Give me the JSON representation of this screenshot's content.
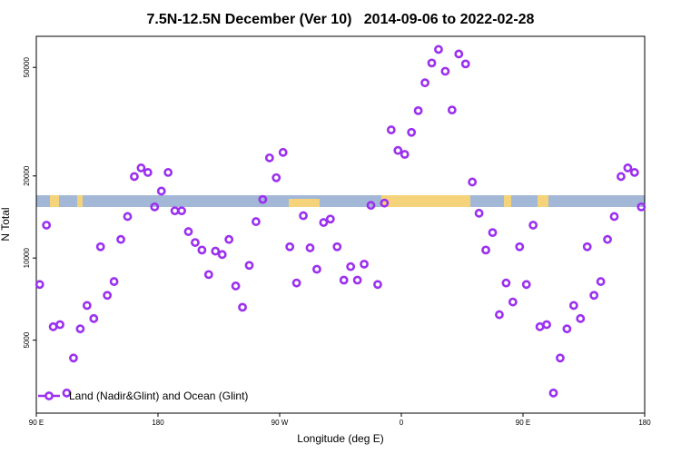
{
  "chart_data": {
    "type": "scatter",
    "title": "7.5N-12.5N December (Ver 10)   2014-09-06 to 2022-02-28",
    "x_label": "Longitude (deg E)",
    "y_label": "N Total",
    "xlim": [
      90,
      540
    ],
    "xticks": [
      {
        "value": 90,
        "label": "90 E"
      },
      {
        "value": 180,
        "label": "180"
      },
      {
        "value": 270,
        "label": "90 W"
      },
      {
        "value": 360,
        "label": "0"
      },
      {
        "value": 450,
        "label": "90 E"
      },
      {
        "value": 540,
        "label": "180"
      }
    ],
    "ylim": [
      2700,
      65000
    ],
    "yscale": "log",
    "yticks": [
      5000,
      10000,
      20000,
      50000
    ],
    "legend": "lower left",
    "series": [
      {
        "name": "Land (Nadir&Glint) and Ocean (Glint)",
        "color": "#9b30f0",
        "x": [
          92.5,
          97.5,
          102.5,
          107.5,
          112.5,
          117.5,
          122.5,
          127.5,
          132.5,
          137.5,
          142.5,
          147.5,
          152.5,
          157.5,
          162.5,
          167.5,
          172.5,
          177.5,
          182.5,
          187.5,
          192.5,
          197.5,
          202.5,
          207.5,
          212.5,
          217.5,
          222.5,
          227.5,
          232.5,
          237.5,
          242.5,
          247.5,
          252.5,
          257.5,
          262.5,
          267.5,
          272.5,
          277.5,
          282.5,
          287.5,
          292.5,
          297.5,
          302.5,
          307.5,
          312.5,
          317.5,
          322.5,
          327.5,
          332.5,
          337.5,
          342.5,
          347.5,
          352.5,
          357.5,
          362.5,
          367.5,
          372.5,
          377.5,
          382.5,
          387.5,
          392.5,
          397.5,
          402.5,
          407.5,
          412.5,
          417.5,
          422.5,
          427.5,
          432.5,
          437.5,
          442.5,
          447.5,
          452.5,
          457.5,
          462.5,
          467.5,
          472.5,
          477.5,
          482.5,
          487.5,
          492.5,
          497.5,
          502.5,
          507.5,
          512.5,
          517.5,
          522.5,
          527.5,
          532.5,
          537.5
        ],
        "values": [
          8000,
          13200,
          5600,
          5700,
          3200,
          4300,
          5500,
          6700,
          6000,
          11000,
          7300,
          8200,
          11700,
          14200,
          19900,
          21400,
          20600,
          15400,
          17600,
          20600,
          14900,
          14900,
          12500,
          11400,
          10700,
          8700,
          10600,
          10300,
          11700,
          7900,
          6600,
          9400,
          13600,
          16400,
          23300,
          19700,
          24400,
          11000,
          8100,
          14300,
          10900,
          9100,
          13500,
          13900,
          11000,
          8300,
          9300,
          8300,
          9500,
          15600,
          8000,
          15900,
          29500,
          24800,
          24000,
          28900,
          34700,
          43900,
          51900,
          58200,
          48400,
          34900,
          56000,
          51500,
          19000,
          14600,
          10700,
          12400,
          6200,
          8100,
          6900,
          11000,
          8000,
          13200,
          5600,
          5700,
          3200,
          4300,
          5500,
          6700,
          6000,
          11000,
          7300,
          8200,
          11700,
          14200,
          19900,
          21400,
          20600,
          15400
        ]
      }
    ]
  }
}
